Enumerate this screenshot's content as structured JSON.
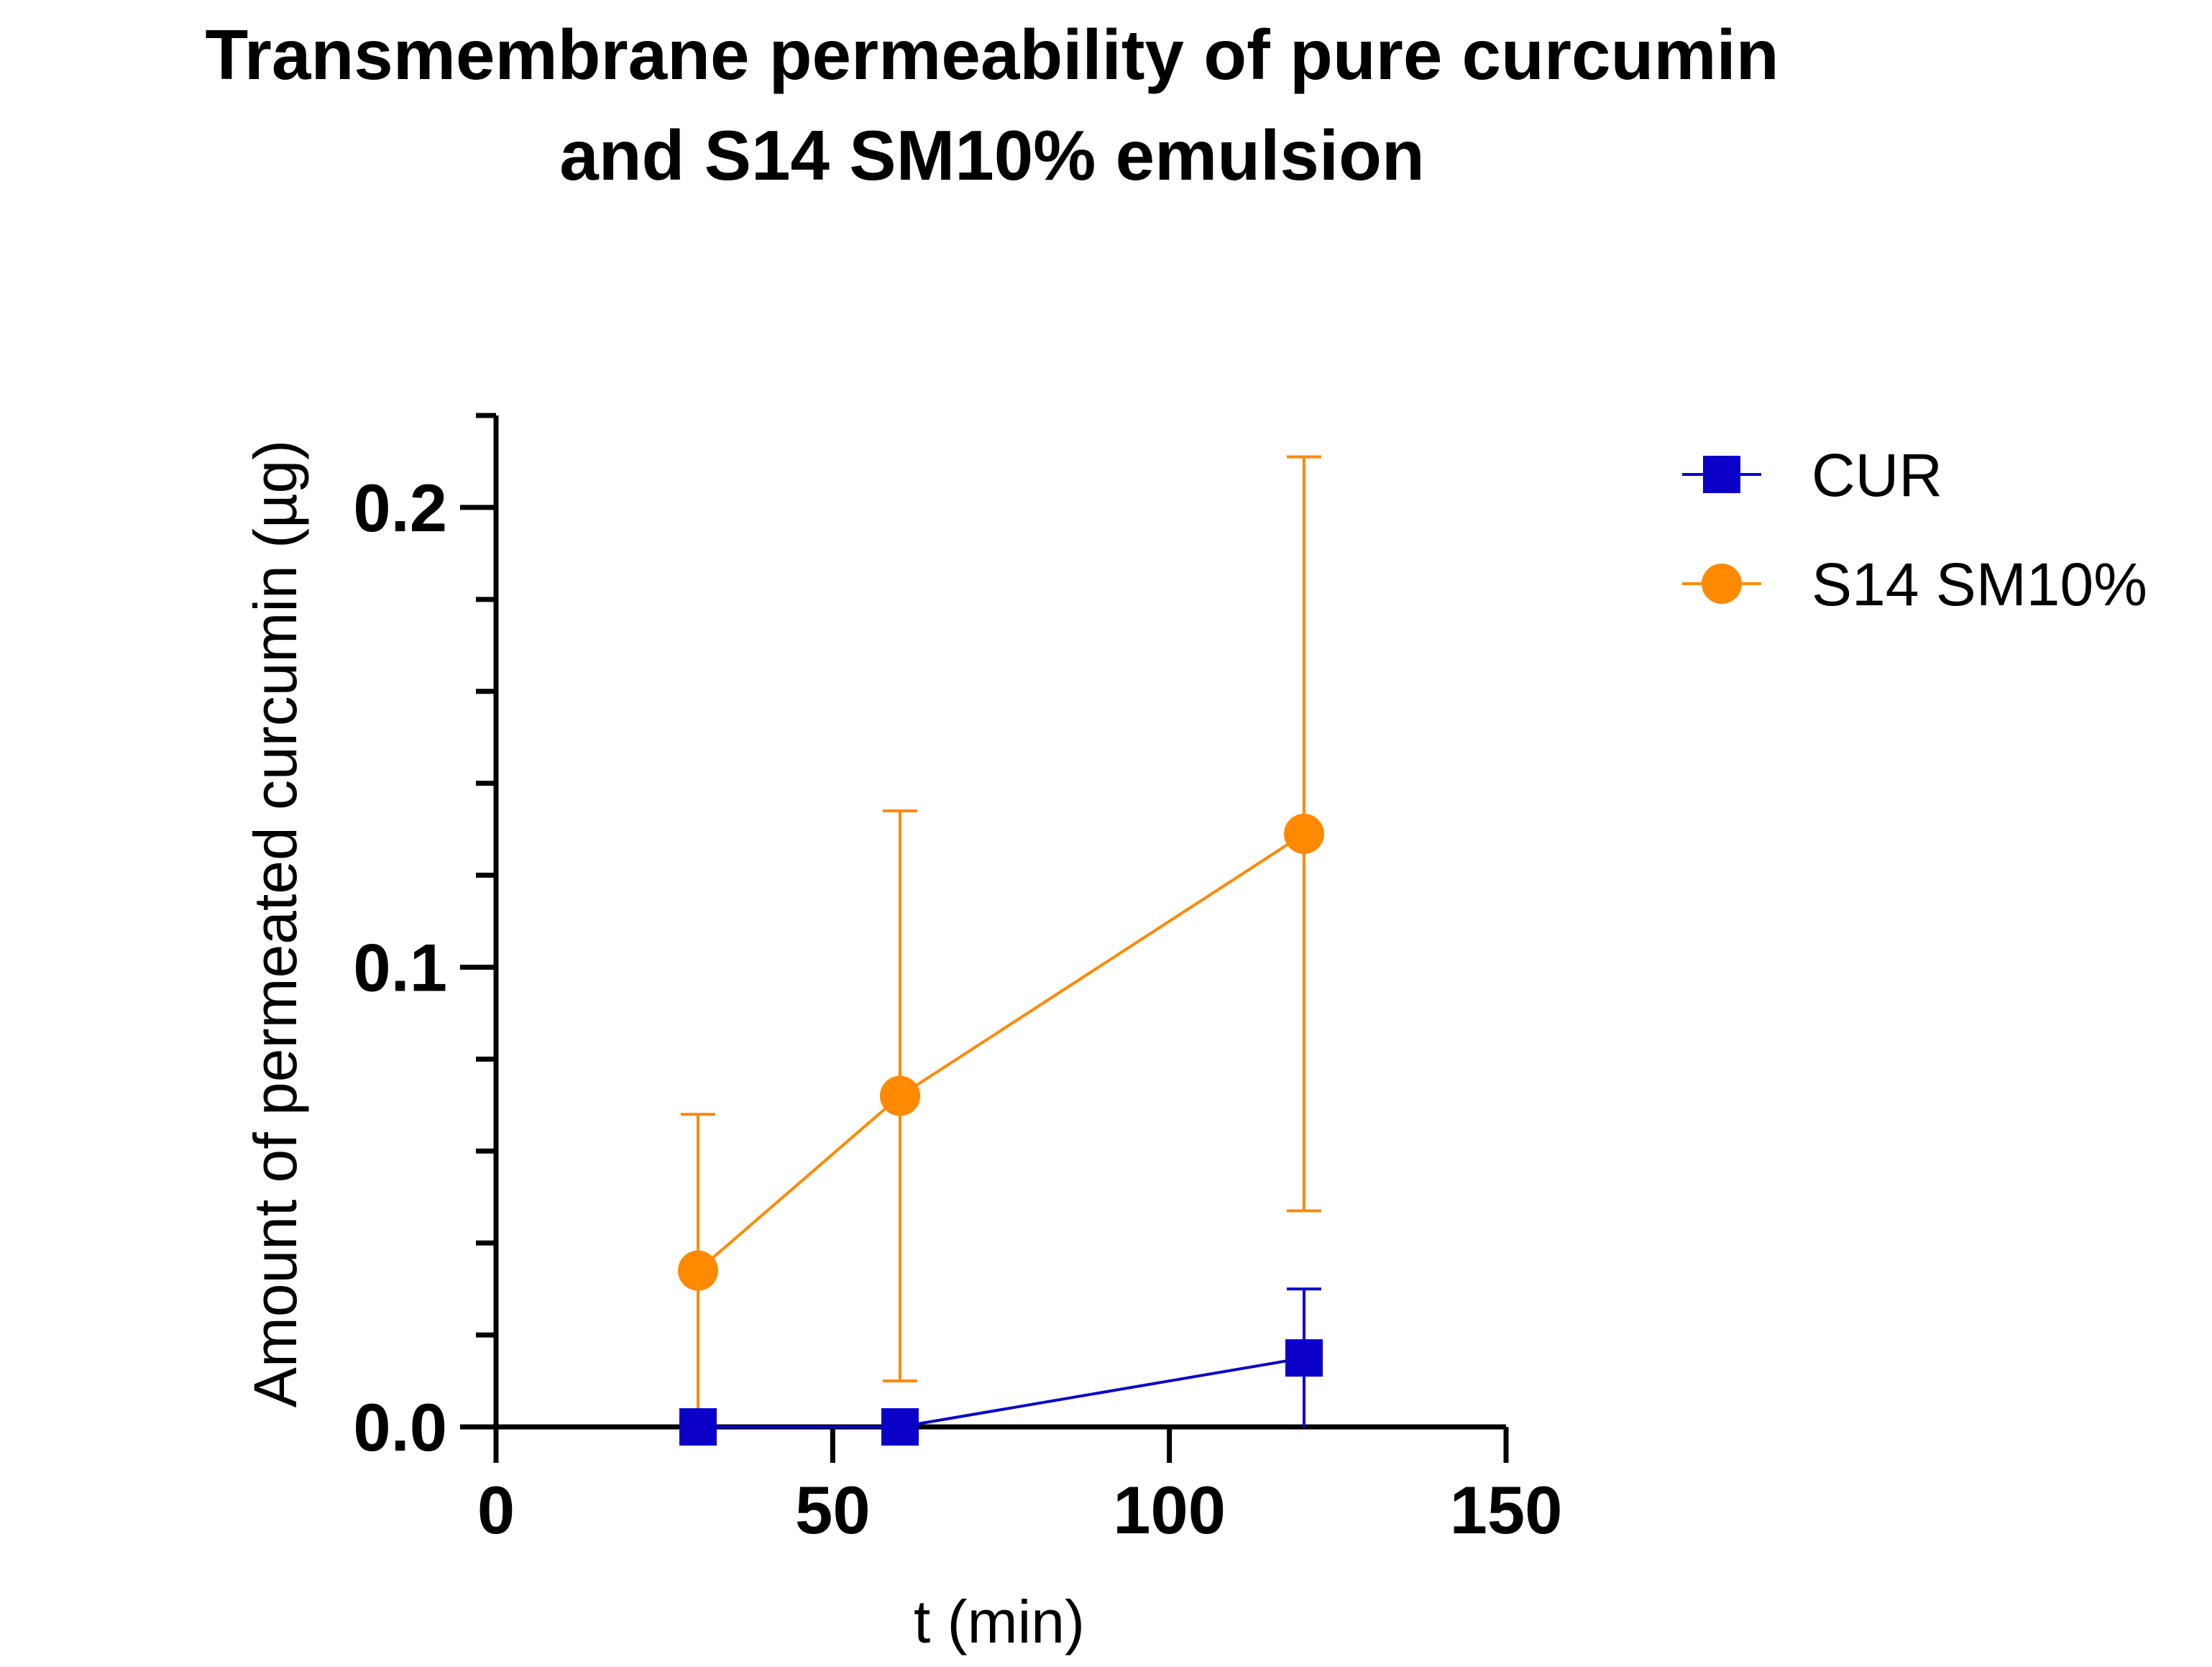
{
  "chart_data": {
    "type": "line",
    "title": "Transmembrane permeability of pure curcumin and S14 SM10% emulsion",
    "title_lines": [
      "Transmembrane permeability of pure curcumin",
      "and S14 SM10% emulsion"
    ],
    "xlabel": "t (min)",
    "ylabel": "Amount of permeated curcumin (µg)",
    "xlim": [
      0,
      150
    ],
    "ylim": [
      0,
      0.22
    ],
    "x_ticks": [
      0,
      50,
      100,
      150
    ],
    "x_tick_labels": [
      "0",
      "50",
      "100",
      "150"
    ],
    "y_major_ticks": [
      0.0,
      0.1,
      0.2
    ],
    "y_tick_labels": [
      "0.0",
      "0.1",
      "0.2"
    ],
    "y_minor_step": 0.02,
    "grid": false,
    "legend_position": "top-right",
    "series": [
      {
        "name": "CUR",
        "marker": "square",
        "color": "#0A00C8",
        "x": [
          30,
          60,
          120
        ],
        "values": [
          0.0,
          0.0,
          0.015
        ],
        "error": [
          0.0,
          0.0,
          0.015
        ]
      },
      {
        "name": "S14 SM10%",
        "marker": "circle",
        "color": "#FF8A00",
        "x": [
          30,
          60,
          120
        ],
        "values": [
          0.034,
          0.072,
          0.129
        ],
        "error": [
          0.034,
          0.062,
          0.082
        ]
      }
    ]
  }
}
